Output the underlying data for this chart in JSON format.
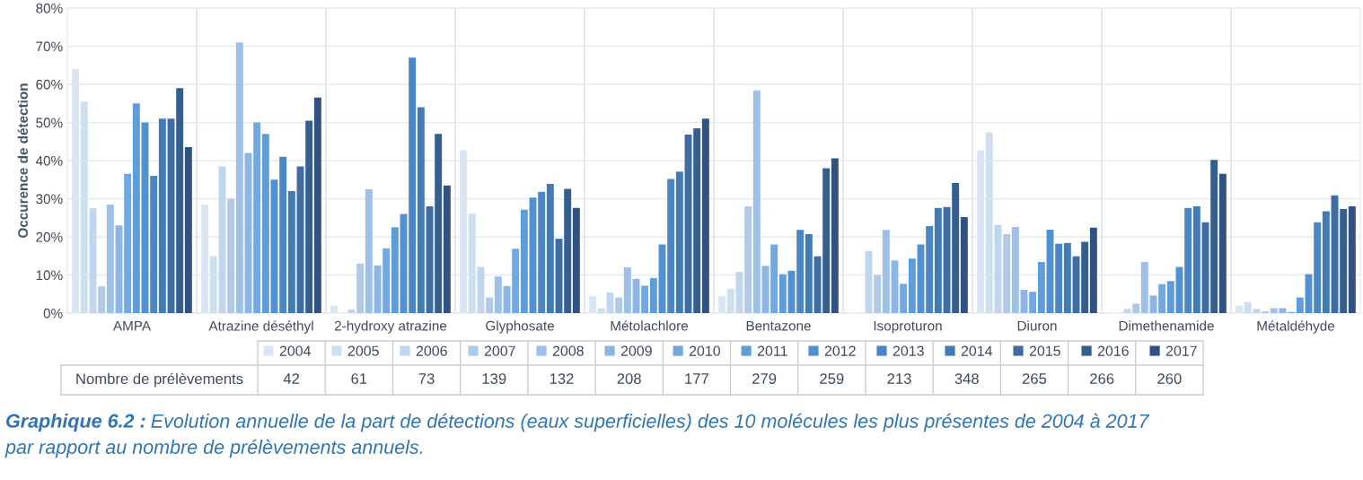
{
  "chart_data": {
    "type": "bar",
    "ylabel": "Occurence de détection",
    "categories": [
      "AMPA",
      "Atrazine déséthyl",
      "2-hydroxy atrazine",
      "Glyphosate",
      "Métolachlore",
      "Bentazone",
      "Isoproturon",
      "Diuron",
      "Dimethenamide",
      "Métaldéhyde"
    ],
    "ylim": [
      0,
      80
    ],
    "yticks": [
      {
        "value": 0,
        "label": "0%"
      },
      {
        "value": 10,
        "label": "10%"
      },
      {
        "value": 20,
        "label": "20%"
      },
      {
        "value": 30,
        "label": "30%"
      },
      {
        "value": 40,
        "label": "40%"
      },
      {
        "value": 50,
        "label": "50%"
      },
      {
        "value": 60,
        "label": "60%"
      },
      {
        "value": 70,
        "label": "70%"
      },
      {
        "value": 80,
        "label": "80%"
      }
    ],
    "grid": true,
    "legend": "bottom",
    "series": [
      {
        "name": "2004",
        "color": "#dae6f4",
        "values": [
          64,
          28.5,
          2,
          42.7,
          4.5,
          4.5,
          null,
          42.7,
          null,
          2.0
        ]
      },
      {
        "name": "2005",
        "color": "#cfdff2",
        "values": [
          55.5,
          15,
          null,
          26.1,
          1.3,
          6.4,
          null,
          47.4,
          null,
          2.9
        ]
      },
      {
        "name": "2006",
        "color": "#c0d5ee",
        "values": [
          27.5,
          38.5,
          1,
          12.1,
          5.4,
          10.8,
          16.3,
          23.1,
          1.1,
          1.1
        ]
      },
      {
        "name": "2007",
        "color": "#aec9ea",
        "values": [
          7,
          30,
          13,
          4.1,
          4.1,
          28.0,
          10.0,
          20.7,
          2.5,
          0.5
        ]
      },
      {
        "name": "2008",
        "color": "#9dbfe8",
        "values": [
          28.5,
          71,
          32.5,
          9.6,
          12.0,
          58.4,
          21.8,
          22.6,
          13.4,
          1.3
        ]
      },
      {
        "name": "2009",
        "color": "#8cb5e4",
        "values": [
          23,
          42,
          12.5,
          7.1,
          9.0,
          12.4,
          13.8,
          6.1,
          4.6,
          1.3
        ]
      },
      {
        "name": "2010",
        "color": "#72a8e0",
        "values": [
          36.5,
          50,
          17,
          16.9,
          7.2,
          18.0,
          7.7,
          5.6,
          7.6,
          0.3
        ]
      },
      {
        "name": "2011",
        "color": "#5e9dd8",
        "values": [
          55,
          47,
          22.5,
          27.1,
          9.2,
          10.2,
          14.3,
          13.4,
          8.4,
          4.1
        ]
      },
      {
        "name": "2012",
        "color": "#5291d0",
        "values": [
          50,
          35,
          26,
          30.3,
          18.0,
          11.1,
          18.0,
          21.9,
          12.1,
          10.2
        ]
      },
      {
        "name": "2013",
        "color": "#4a86c3",
        "values": [
          36,
          41,
          67,
          31.8,
          35.2,
          21.8,
          22.8,
          18.2,
          27.6,
          23.8
        ]
      },
      {
        "name": "2014",
        "color": "#437ab4",
        "values": [
          51,
          32,
          54,
          33.9,
          37.1,
          20.7,
          27.6,
          18.4,
          28.0,
          26.7
        ]
      },
      {
        "name": "2015",
        "color": "#3d6da2",
        "values": [
          51,
          38.5,
          28,
          19.5,
          46.8,
          14.9,
          27.8,
          14.9,
          23.8,
          30.9
        ]
      },
      {
        "name": "2016",
        "color": "#355f8f",
        "values": [
          59,
          50.5,
          47,
          32.6,
          48.5,
          38.0,
          34.1,
          18.7,
          40.2,
          27.3
        ]
      },
      {
        "name": "2017",
        "color": "#2e5281",
        "values": [
          43.5,
          56.5,
          33.5,
          27.6,
          51.0,
          40.6,
          25.2,
          22.4,
          36.5,
          28.0
        ]
      }
    ],
    "annotations": [
      "Nombre de prélèvements",
      "42",
      "61",
      "73",
      "139",
      "132",
      "208",
      "177",
      "279",
      "259",
      "213",
      "348",
      "265",
      "266",
      "260",
      "Graphique 6.2 :",
      "Evolution annuelle de la part de détections (eaux superficielles) des 10 molécules les plus présentes de 2004 à 2017",
      "par rapport au nombre de prélèvements annuels."
    ]
  }
}
